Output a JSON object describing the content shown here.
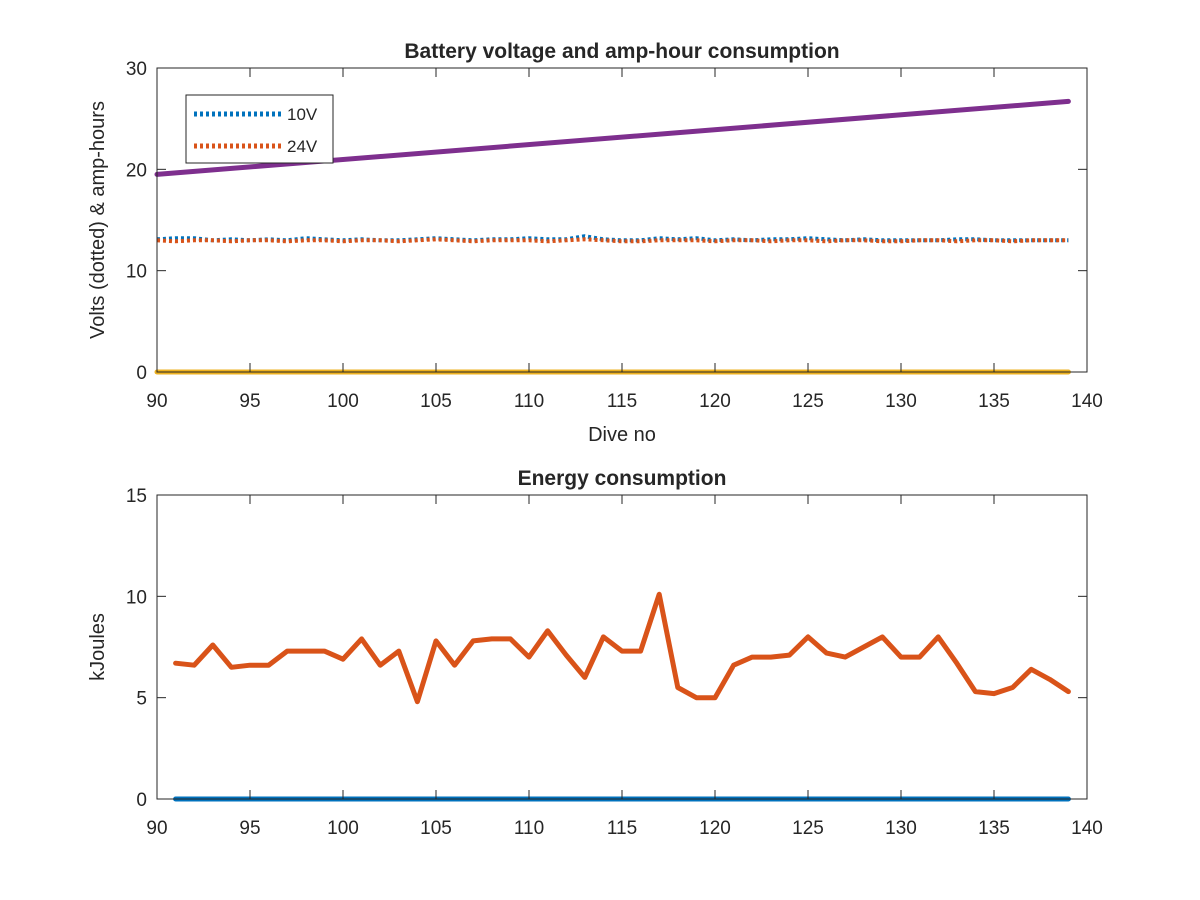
{
  "chart_data": [
    {
      "type": "line",
      "title": "Battery voltage and amp-hour consumption",
      "xlabel": "Dive no",
      "ylabel": "Volts (dotted) & amp-hours",
      "xlim": [
        90,
        140
      ],
      "ylim": [
        0,
        30
      ],
      "xticks": [
        "90",
        "95",
        "100",
        "105",
        "110",
        "115",
        "120",
        "125",
        "130",
        "135",
        "140"
      ],
      "yticks": [
        "0",
        "10",
        "20",
        "30"
      ],
      "legend": {
        "placement": "top-left",
        "entries": [
          "10V",
          "24V"
        ]
      },
      "grid": false,
      "series": [
        {
          "name": "10V",
          "color": "#0072BD",
          "style": "dotted",
          "x": [
            90,
            91,
            92,
            93,
            94,
            95,
            96,
            97,
            98,
            99,
            100,
            101,
            102,
            103,
            104,
            105,
            106,
            107,
            108,
            109,
            110,
            111,
            112,
            113,
            114,
            115,
            116,
            117,
            118,
            119,
            120,
            121,
            122,
            123,
            124,
            125,
            126,
            127,
            128,
            129,
            130,
            131,
            132,
            133,
            134,
            135,
            136,
            137,
            138,
            139
          ],
          "y": [
            13.1,
            13.2,
            13.2,
            13.0,
            13.1,
            13.0,
            13.1,
            13.0,
            13.2,
            13.1,
            13.0,
            13.1,
            13.0,
            13.0,
            13.1,
            13.2,
            13.1,
            13.0,
            13.1,
            13.1,
            13.2,
            13.1,
            13.1,
            13.4,
            13.1,
            13.0,
            13.0,
            13.2,
            13.1,
            13.2,
            13.0,
            13.1,
            13.0,
            13.1,
            13.1,
            13.2,
            13.1,
            13.0,
            13.1,
            13.0,
            13.0,
            13.0,
            13.0,
            13.1,
            13.1,
            13.0,
            13.0,
            13.0,
            13.0,
            13.0
          ]
        },
        {
          "name": "24V",
          "color": "#D95319",
          "style": "dotted",
          "x": [
            90,
            91,
            92,
            93,
            94,
            95,
            96,
            97,
            98,
            99,
            100,
            101,
            102,
            103,
            104,
            105,
            106,
            107,
            108,
            109,
            110,
            111,
            112,
            113,
            114,
            115,
            116,
            117,
            118,
            119,
            120,
            121,
            122,
            123,
            124,
            125,
            126,
            127,
            128,
            129,
            130,
            131,
            132,
            133,
            134,
            135,
            136,
            137,
            138,
            139
          ],
          "y": [
            13.0,
            12.9,
            13.0,
            13.0,
            12.9,
            13.0,
            13.0,
            12.9,
            13.0,
            13.0,
            12.9,
            13.0,
            13.0,
            12.9,
            13.0,
            13.1,
            13.0,
            12.9,
            13.0,
            13.0,
            13.0,
            12.9,
            13.0,
            13.1,
            13.0,
            12.9,
            12.9,
            13.0,
            13.0,
            13.0,
            12.9,
            13.0,
            13.0,
            12.9,
            13.0,
            13.0,
            12.9,
            13.0,
            13.0,
            12.9,
            12.9,
            13.0,
            13.0,
            12.9,
            13.0,
            13.0,
            12.9,
            13.0,
            13.0,
            13.0
          ]
        },
        {
          "color": "#7E2F8E",
          "style": "solid",
          "x": [
            90,
            139
          ],
          "y": [
            19.5,
            26.7
          ]
        },
        {
          "color": "#EDB120",
          "style": "solid",
          "x": [
            90,
            139
          ],
          "y": [
            0,
            0
          ]
        }
      ]
    },
    {
      "type": "line",
      "title": "Energy consumption",
      "xlabel": "",
      "ylabel": "kJoules",
      "xlim": [
        90,
        140
      ],
      "ylim": [
        0,
        15
      ],
      "xticks": [
        "90",
        "95",
        "100",
        "105",
        "110",
        "115",
        "120",
        "125",
        "130",
        "135",
        "140"
      ],
      "yticks": [
        "0",
        "5",
        "10",
        "15"
      ],
      "grid": false,
      "series": [
        {
          "color": "#0072BD",
          "style": "solid",
          "x": [
            91,
            139
          ],
          "y": [
            0,
            0
          ]
        },
        {
          "color": "#D95319",
          "style": "solid",
          "x": [
            91,
            92,
            93,
            94,
            95,
            96,
            97,
            98,
            99,
            100,
            101,
            102,
            103,
            104,
            105,
            106,
            107,
            108,
            109,
            110,
            111,
            112,
            113,
            114,
            115,
            116,
            117,
            118,
            119,
            120,
            121,
            122,
            123,
            124,
            125,
            126,
            127,
            128,
            129,
            130,
            131,
            132,
            133,
            134,
            135,
            136,
            137,
            138,
            139
          ],
          "y": [
            6.7,
            6.6,
            7.6,
            6.5,
            6.6,
            6.6,
            7.3,
            7.3,
            7.3,
            6.9,
            7.9,
            6.6,
            7.3,
            4.8,
            7.8,
            6.6,
            7.8,
            7.9,
            7.9,
            7.0,
            8.3,
            7.1,
            6.0,
            8.0,
            7.3,
            7.3,
            10.1,
            5.5,
            5.0,
            5.0,
            6.6,
            7.0,
            7.0,
            7.1,
            8.0,
            7.2,
            7.0,
            7.5,
            8.0,
            7.0,
            7.0,
            8.0,
            6.7,
            5.3,
            5.2,
            5.5,
            6.4,
            5.9,
            5.3
          ]
        }
      ]
    }
  ]
}
